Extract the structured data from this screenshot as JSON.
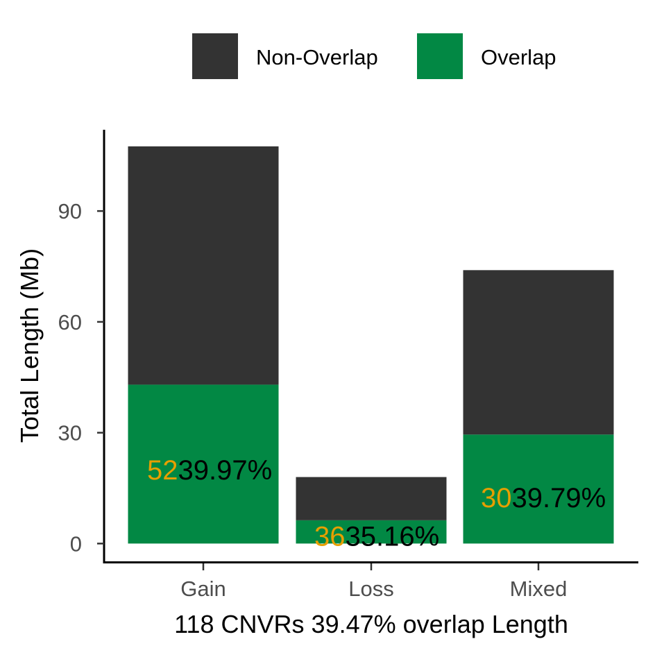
{
  "chart_data": {
    "type": "bar",
    "stacked": true,
    "categories": [
      "Gain",
      "Loss",
      "Mixed"
    ],
    "series": [
      {
        "name": "Overlap",
        "color": "#028844",
        "values": [
          43.0,
          6.3,
          29.5
        ]
      },
      {
        "name": "Non-Overlap",
        "color": "#333333",
        "values": [
          64.5,
          11.7,
          44.5
        ]
      }
    ],
    "legend": {
      "position": "top",
      "items": [
        {
          "label": "Non-Overlap",
          "color": "#333333"
        },
        {
          "label": "Overlap",
          "color": "#028844"
        }
      ]
    },
    "bar_labels": [
      {
        "count": "52",
        "percent": "39.97%",
        "y": 20
      },
      {
        "count": "36",
        "percent": "35.16%",
        "y": 2
      },
      {
        "count": "30",
        "percent": "39.79%",
        "y": 12.5
      }
    ],
    "label_colors": {
      "count": "#E69F00",
      "percent": "#000000"
    },
    "xlabel": "118 CNVRs 39.47% overlap Length",
    "ylabel": "Total Length (Mb)",
    "yticks": [
      0,
      30,
      60,
      90
    ],
    "ylim": [
      -5,
      112
    ],
    "grid": false
  }
}
